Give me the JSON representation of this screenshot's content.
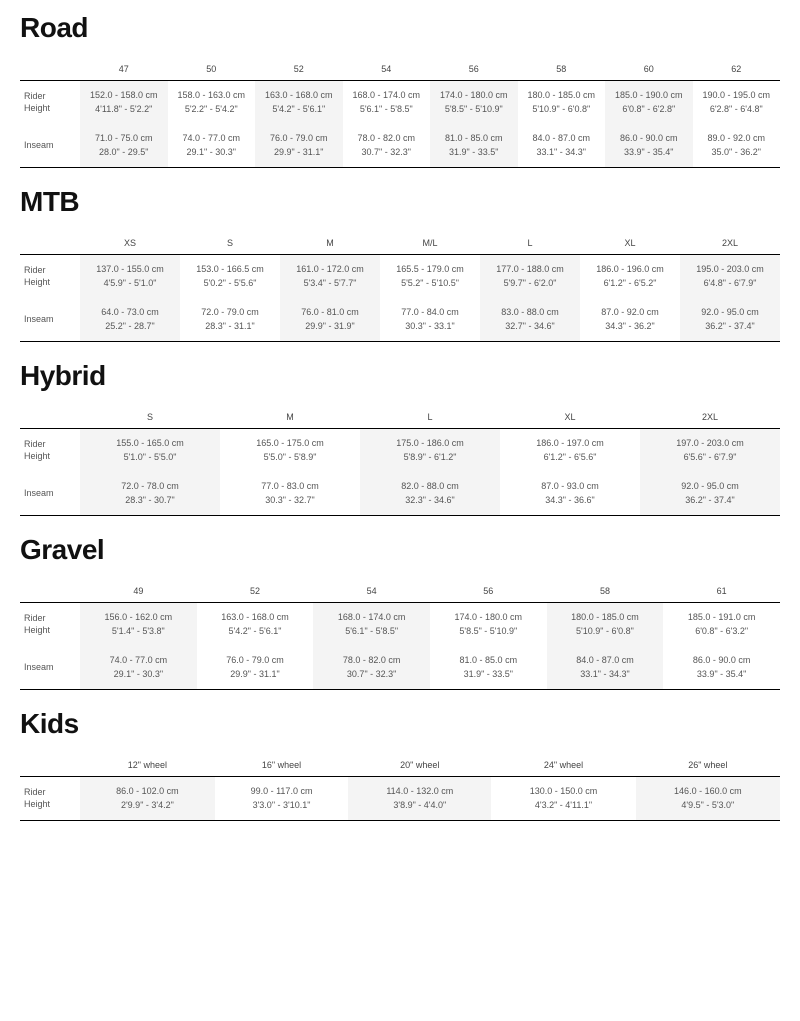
{
  "sections": [
    {
      "title": "Road",
      "rowLabels": [
        "Rider\nHeight",
        "Inseam"
      ],
      "sizes": [
        "47",
        "50",
        "52",
        "54",
        "56",
        "58",
        "60",
        "62"
      ],
      "rows": [
        [
          {
            "cm": "152.0 - 158.0 cm",
            "in": "4'11.8\" - 5'2.2\""
          },
          {
            "cm": "158.0 - 163.0 cm",
            "in": "5'2.2\" - 5'4.2\""
          },
          {
            "cm": "163.0 - 168.0 cm",
            "in": "5'4.2\" - 5'6.1\""
          },
          {
            "cm": "168.0 - 174.0 cm",
            "in": "5'6.1\" - 5'8.5\""
          },
          {
            "cm": "174.0 - 180.0 cm",
            "in": "5'8.5\" - 5'10.9\""
          },
          {
            "cm": "180.0 - 185.0 cm",
            "in": "5'10.9\" - 6'0.8\""
          },
          {
            "cm": "185.0 - 190.0 cm",
            "in": "6'0.8\" - 6'2.8\""
          },
          {
            "cm": "190.0 - 195.0 cm",
            "in": "6'2.8\" - 6'4.8\""
          }
        ],
        [
          {
            "cm": "71.0 - 75.0 cm",
            "in": "28.0\" - 29.5\""
          },
          {
            "cm": "74.0 - 77.0 cm",
            "in": "29.1\" - 30.3\""
          },
          {
            "cm": "76.0 - 79.0 cm",
            "in": "29.9\" - 31.1\""
          },
          {
            "cm": "78.0 - 82.0 cm",
            "in": "30.7\" - 32.3\""
          },
          {
            "cm": "81.0 - 85.0 cm",
            "in": "31.9\" - 33.5\""
          },
          {
            "cm": "84.0 - 87.0 cm",
            "in": "33.1\" - 34.3\""
          },
          {
            "cm": "86.0 - 90.0 cm",
            "in": "33.9\" - 35.4\""
          },
          {
            "cm": "89.0 - 92.0 cm",
            "in": "35.0\" - 36.2\""
          }
        ]
      ]
    },
    {
      "title": "MTB",
      "rowLabels": [
        "Rider\nHeight",
        "Inseam"
      ],
      "sizes": [
        "XS",
        "S",
        "M",
        "M/L",
        "L",
        "XL",
        "2XL"
      ],
      "rows": [
        [
          {
            "cm": "137.0 - 155.0 cm",
            "in": "4'5.9\" - 5'1.0\""
          },
          {
            "cm": "153.0 - 166.5 cm",
            "in": "5'0.2\" - 5'5.6\""
          },
          {
            "cm": "161.0 - 172.0 cm",
            "in": "5'3.4\" - 5'7.7\""
          },
          {
            "cm": "165.5 - 179.0 cm",
            "in": "5'5.2\" - 5'10.5\""
          },
          {
            "cm": "177.0 - 188.0 cm",
            "in": "5'9.7\" - 6'2.0\""
          },
          {
            "cm": "186.0 - 196.0 cm",
            "in": "6'1.2\" - 6'5.2\""
          },
          {
            "cm": "195.0 - 203.0 cm",
            "in": "6'4.8\" - 6'7.9\""
          }
        ],
        [
          {
            "cm": "64.0 - 73.0 cm",
            "in": "25.2\" - 28.7\""
          },
          {
            "cm": "72.0 - 79.0 cm",
            "in": "28.3\" - 31.1\""
          },
          {
            "cm": "76.0 - 81.0 cm",
            "in": "29.9\" - 31.9\""
          },
          {
            "cm": "77.0 - 84.0 cm",
            "in": "30.3\" - 33.1\""
          },
          {
            "cm": "83.0 - 88.0 cm",
            "in": "32.7\" - 34.6\""
          },
          {
            "cm": "87.0 - 92.0 cm",
            "in": "34.3\" - 36.2\""
          },
          {
            "cm": "92.0 - 95.0 cm",
            "in": "36.2\" - 37.4\""
          }
        ]
      ]
    },
    {
      "title": "Hybrid",
      "rowLabels": [
        "Rider\nHeight",
        "Inseam"
      ],
      "sizes": [
        "S",
        "M",
        "L",
        "XL",
        "2XL"
      ],
      "rows": [
        [
          {
            "cm": "155.0 - 165.0 cm",
            "in": "5'1.0\" - 5'5.0\""
          },
          {
            "cm": "165.0 - 175.0 cm",
            "in": "5'5.0\" - 5'8.9\""
          },
          {
            "cm": "175.0 - 186.0 cm",
            "in": "5'8.9\" - 6'1.2\""
          },
          {
            "cm": "186.0 - 197.0 cm",
            "in": "6'1.2\" - 6'5.6\""
          },
          {
            "cm": "197.0 - 203.0 cm",
            "in": "6'5.6\" - 6'7.9\""
          }
        ],
        [
          {
            "cm": "72.0 - 78.0 cm",
            "in": "28.3\" - 30.7\""
          },
          {
            "cm": "77.0 - 83.0 cm",
            "in": "30.3\" - 32.7\""
          },
          {
            "cm": "82.0 - 88.0 cm",
            "in": "32.3\" - 34.6\""
          },
          {
            "cm": "87.0 - 93.0 cm",
            "in": "34.3\" - 36.6\""
          },
          {
            "cm": "92.0 - 95.0 cm",
            "in": "36.2\" - 37.4\""
          }
        ]
      ]
    },
    {
      "title": "Gravel",
      "rowLabels": [
        "Rider\nHeight",
        "Inseam"
      ],
      "sizes": [
        "49",
        "52",
        "54",
        "56",
        "58",
        "61"
      ],
      "rows": [
        [
          {
            "cm": "156.0 - 162.0 cm",
            "in": "5'1.4\" - 5'3.8\""
          },
          {
            "cm": "163.0 - 168.0 cm",
            "in": "5'4.2\" - 5'6.1\""
          },
          {
            "cm": "168.0 - 174.0 cm",
            "in": "5'6.1\" - 5'8.5\""
          },
          {
            "cm": "174.0 - 180.0 cm",
            "in": "5'8.5\" - 5'10.9\""
          },
          {
            "cm": "180.0 - 185.0 cm",
            "in": "5'10.9\" - 6'0.8\""
          },
          {
            "cm": "185.0 - 191.0 cm",
            "in": "6'0.8\" - 6'3.2\""
          }
        ],
        [
          {
            "cm": "74.0 - 77.0 cm",
            "in": "29.1\" - 30.3\""
          },
          {
            "cm": "76.0 - 79.0 cm",
            "in": "29.9\" - 31.1\""
          },
          {
            "cm": "78.0 - 82.0 cm",
            "in": "30.7\" - 32.3\""
          },
          {
            "cm": "81.0 - 85.0 cm",
            "in": "31.9\" - 33.5\""
          },
          {
            "cm": "84.0 - 87.0 cm",
            "in": "33.1\" - 34.3\""
          },
          {
            "cm": "86.0 - 90.0 cm",
            "in": "33.9\" - 35.4\""
          }
        ]
      ]
    },
    {
      "title": "Kids",
      "rowLabels": [
        "Rider\nHeight"
      ],
      "sizes": [
        "12\" wheel",
        "16\" wheel",
        "20\" wheel",
        "24\" wheel",
        "26\" wheel"
      ],
      "rows": [
        [
          {
            "cm": "86.0 - 102.0 cm",
            "in": "2'9.9\" - 3'4.2\""
          },
          {
            "cm": "99.0 - 117.0 cm",
            "in": "3'3.0\" - 3'10.1\""
          },
          {
            "cm": "114.0 - 132.0 cm",
            "in": "3'8.9\" - 4'4.0\""
          },
          {
            "cm": "130.0 - 150.0 cm",
            "in": "4'3.2\" - 4'11.1\""
          },
          {
            "cm": "146.0 - 160.0 cm",
            "in": "4'9.5\" - 5'3.0\""
          }
        ]
      ]
    }
  ]
}
